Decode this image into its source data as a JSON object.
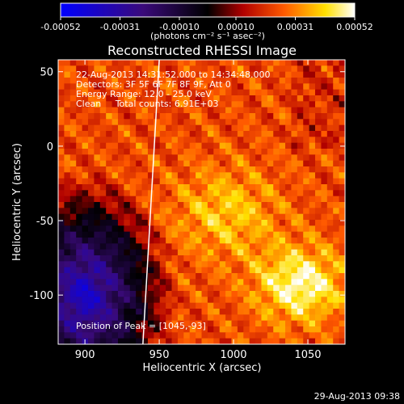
{
  "chart_data": {
    "type": "heatmap",
    "title": "Reconstructed RHESSI Image",
    "xlabel": "Heliocentric X (arcsec)",
    "ylabel": "Heliocentric Y (arcsec)",
    "xlim": [
      882,
      1075
    ],
    "ylim": [
      -133,
      58
    ],
    "xticks": [
      900,
      950,
      1000,
      1050
    ],
    "yticks": [
      50,
      0,
      -50,
      -100
    ],
    "colorbar": {
      "ticks": [
        "-0.00052",
        "-0.00031",
        "-0.00010",
        "0.00010",
        "0.00031",
        "0.00052"
      ],
      "units": "(photons cm⁻² s⁻¹ asec⁻²)",
      "range": [
        -0.00052,
        0.00052
      ],
      "colors": [
        "#0000ff",
        "#3a0a7a",
        "#000000",
        "#b00000",
        "#ff5a00",
        "#ffe000",
        "#ffffff"
      ]
    },
    "annotations": [
      "22-Aug-2013 14:31:52.000 to 14:34:48.000",
      "Detectors: 3F 5F 6F 7F 8F 9F, Att 0",
      "Energy Range: 12.0 - 25.0 keV",
      "Clean     Total counts: 6.91E+03"
    ],
    "peak_label": "Position of Peak = [1045,-93]",
    "peak": [
      1045,
      -93
    ],
    "limb_curve": [
      [
        950,
        58
      ],
      [
        945,
        -30
      ],
      [
        939,
        -133
      ]
    ]
  },
  "footer": {
    "timestamp": "29-Aug-2013 09:38"
  }
}
